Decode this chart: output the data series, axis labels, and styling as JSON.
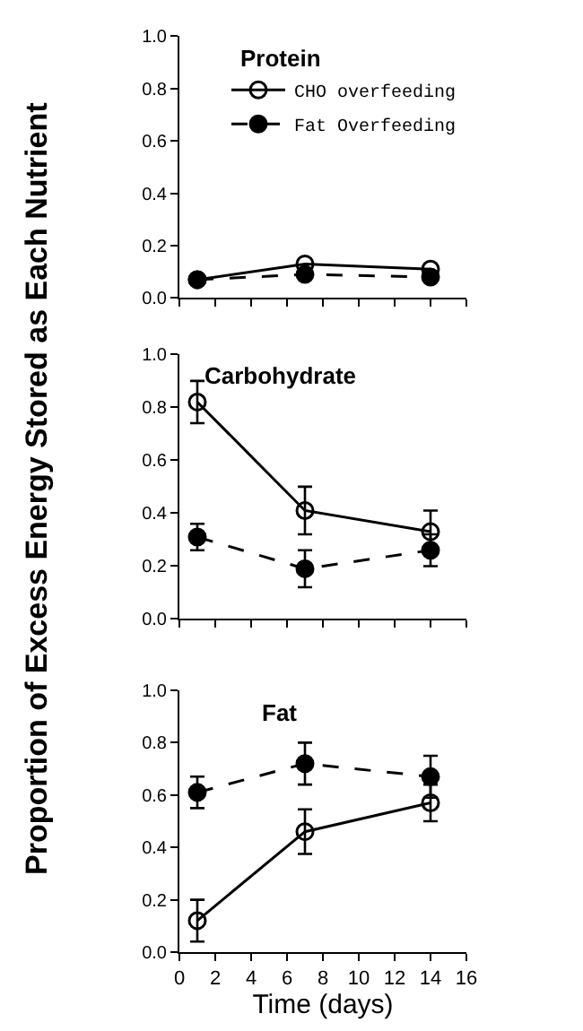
{
  "chart_data": [
    {
      "type": "line",
      "title": "Protein",
      "x": [
        1,
        7,
        14
      ],
      "xlim": [
        0,
        16
      ],
      "xticks": [
        0,
        2,
        4,
        6,
        8,
        10,
        12,
        14,
        16
      ],
      "ylim": [
        0,
        1
      ],
      "yticks": [
        "0.0",
        0.2,
        0.4,
        0.6,
        0.8,
        "1.0"
      ],
      "tick_labels": "y",
      "legend": "top right",
      "series": [
        {
          "name": "CHO overfeeding",
          "color": "#000000",
          "marker": "circle-open",
          "line_style": "solid",
          "values": [
            0.07,
            0.13,
            0.11
          ]
        },
        {
          "name": "Fat Overfeeding",
          "color": "#000000",
          "marker": "circle",
          "line_style": "dashed",
          "values": [
            0.07,
            0.09,
            0.08
          ]
        }
      ]
    },
    {
      "type": "line",
      "title": "Carbohydrate",
      "ylabel": "Proportion of Excess Energy Stored as Each Nutrient",
      "x": [
        1,
        7,
        14
      ],
      "xlim": [
        0,
        16
      ],
      "xticks": [
        0,
        2,
        4,
        6,
        8,
        10,
        12,
        14,
        16
      ],
      "ylim": [
        0,
        1
      ],
      "yticks": [
        "0.0",
        0.2,
        0.4,
        0.6,
        0.8,
        "1.0"
      ],
      "tick_labels": "y",
      "series": [
        {
          "color": "#000000",
          "marker": "circle-open",
          "line_style": "solid",
          "values": [
            0.82,
            0.41,
            0.33
          ],
          "errors": [
            0.08,
            0.09,
            0.08
          ]
        },
        {
          "color": "#000000",
          "marker": "circle",
          "line_style": "dashed",
          "values": [
            0.31,
            0.19,
            0.26
          ],
          "errors": [
            0.05,
            0.07,
            0.06
          ]
        }
      ]
    },
    {
      "type": "line",
      "title": "Fat",
      "xlabel": "Time (days)",
      "x": [
        1,
        7,
        14
      ],
      "xlim": [
        0,
        16
      ],
      "xticks": [
        0,
        2,
        4,
        6,
        8,
        10,
        12,
        14,
        16
      ],
      "ylim": [
        0,
        1
      ],
      "yticks": [
        "0.0",
        0.2,
        0.4,
        0.6,
        0.8,
        "1.0"
      ],
      "series": [
        {
          "color": "#000000",
          "marker": "circle-open",
          "line_style": "solid",
          "values": [
            0.12,
            0.46,
            0.57
          ],
          "errors": [
            0.08,
            0.085,
            0.07
          ]
        },
        {
          "color": "#000000",
          "marker": "circle",
          "line_style": "dashed",
          "values": [
            0.61,
            0.72,
            0.67
          ],
          "errors": [
            0.06,
            0.08,
            0.08
          ]
        }
      ]
    }
  ]
}
